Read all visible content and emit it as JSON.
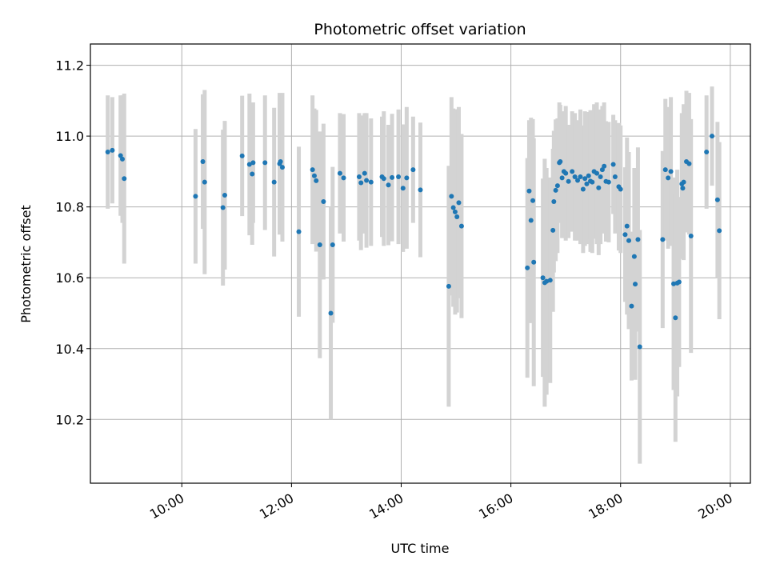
{
  "chart_data": {
    "type": "scatter",
    "title": "Photometric offset variation",
    "xlabel": "UTC time",
    "ylabel": "Photometric offset",
    "xlim": [
      "08:20",
      "20:22"
    ],
    "ylim": [
      10.02,
      11.26
    ],
    "xticks": [
      "10:00",
      "12:00",
      "14:00",
      "16:00",
      "18:00",
      "20:00"
    ],
    "yticks": [
      10.2,
      10.4,
      10.6,
      10.8,
      11.0,
      11.2
    ],
    "grid": true,
    "marker_color": "#1f77b4",
    "errorbar_color": "#d3d3d3",
    "points": [
      {
        "x": "08:39",
        "y": 10.955,
        "err": 0.16
      },
      {
        "x": "08:44",
        "y": 10.96,
        "err": 0.15
      },
      {
        "x": "08:53",
        "y": 10.945,
        "err": 0.17
      },
      {
        "x": "08:55",
        "y": 10.935,
        "err": 0.18
      },
      {
        "x": "08:57",
        "y": 10.88,
        "err": 0.24
      },
      {
        "x": "10:15",
        "y": 10.83,
        "err": 0.19
      },
      {
        "x": "10:23",
        "y": 10.928,
        "err": 0.19
      },
      {
        "x": "10:25",
        "y": 10.87,
        "err": 0.26
      },
      {
        "x": "10:45",
        "y": 10.798,
        "err": 0.22
      },
      {
        "x": "10:47",
        "y": 10.833,
        "err": 0.21
      },
      {
        "x": "11:06",
        "y": 10.944,
        "err": 0.17
      },
      {
        "x": "11:14",
        "y": 10.92,
        "err": 0.2
      },
      {
        "x": "11:17",
        "y": 10.893,
        "err": 0.2
      },
      {
        "x": "11:18",
        "y": 10.925,
        "err": 0.17
      },
      {
        "x": "11:31",
        "y": 10.925,
        "err": 0.19
      },
      {
        "x": "11:41",
        "y": 10.87,
        "err": 0.21
      },
      {
        "x": "11:47",
        "y": 10.922,
        "err": 0.2
      },
      {
        "x": "11:48",
        "y": 10.928,
        "err": 0.19
      },
      {
        "x": "11:50",
        "y": 10.912,
        "err": 0.21
      },
      {
        "x": "12:08",
        "y": 10.73,
        "err": 0.24
      },
      {
        "x": "12:23",
        "y": 10.905,
        "err": 0.21
      },
      {
        "x": "12:25",
        "y": 10.888,
        "err": 0.19
      },
      {
        "x": "12:27",
        "y": 10.874,
        "err": 0.2
      },
      {
        "x": "12:31",
        "y": 10.693,
        "err": 0.32
      },
      {
        "x": "12:35",
        "y": 10.815,
        "err": 0.22
      },
      {
        "x": "12:43",
        "y": 10.5,
        "err": 0.3
      },
      {
        "x": "12:45",
        "y": 10.693,
        "err": 0.22
      },
      {
        "x": "12:53",
        "y": 10.895,
        "err": 0.17
      },
      {
        "x": "12:57",
        "y": 10.882,
        "err": 0.18
      },
      {
        "x": "13:14",
        "y": 10.885,
        "err": 0.18
      },
      {
        "x": "13:16",
        "y": 10.868,
        "err": 0.19
      },
      {
        "x": "13:20",
        "y": 10.895,
        "err": 0.17
      },
      {
        "x": "13:22",
        "y": 10.875,
        "err": 0.19
      },
      {
        "x": "13:27",
        "y": 10.87,
        "err": 0.18
      },
      {
        "x": "13:39",
        "y": 10.885,
        "err": 0.17
      },
      {
        "x": "13:41",
        "y": 10.88,
        "err": 0.19
      },
      {
        "x": "13:46",
        "y": 10.862,
        "err": 0.17
      },
      {
        "x": "13:50",
        "y": 10.883,
        "err": 0.18
      },
      {
        "x": "13:57",
        "y": 10.885,
        "err": 0.19
      },
      {
        "x": "14:02",
        "y": 10.853,
        "err": 0.18
      },
      {
        "x": "14:06",
        "y": 10.882,
        "err": 0.2
      },
      {
        "x": "14:13",
        "y": 10.905,
        "err": 0.15
      },
      {
        "x": "14:21",
        "y": 10.848,
        "err": 0.19
      },
      {
        "x": "14:52",
        "y": 10.576,
        "err": 0.34
      },
      {
        "x": "14:55",
        "y": 10.83,
        "err": 0.28
      },
      {
        "x": "14:57",
        "y": 10.798,
        "err": 0.28
      },
      {
        "x": "14:59",
        "y": 10.786,
        "err": 0.29
      },
      {
        "x": "15:01",
        "y": 10.772,
        "err": 0.27
      },
      {
        "x": "15:03",
        "y": 10.812,
        "err": 0.27
      },
      {
        "x": "15:06",
        "y": 10.746,
        "err": 0.26
      },
      {
        "x": "16:18",
        "y": 10.628,
        "err": 0.31
      },
      {
        "x": "16:20",
        "y": 10.845,
        "err": 0.2
      },
      {
        "x": "16:22",
        "y": 10.762,
        "err": 0.29
      },
      {
        "x": "16:24",
        "y": 10.818,
        "err": 0.23
      },
      {
        "x": "16:25",
        "y": 10.644,
        "err": 0.35
      },
      {
        "x": "16:35",
        "y": 10.6,
        "err": 0.28
      },
      {
        "x": "16:37",
        "y": 10.586,
        "err": 0.35
      },
      {
        "x": "16:39",
        "y": 10.59,
        "err": 0.32
      },
      {
        "x": "16:43",
        "y": 10.593,
        "err": 0.29
      },
      {
        "x": "16:46",
        "y": 10.734,
        "err": 0.23
      },
      {
        "x": "16:47",
        "y": 10.815,
        "err": 0.2
      },
      {
        "x": "16:49",
        "y": 10.847,
        "err": 0.2
      },
      {
        "x": "16:51",
        "y": 10.86,
        "err": 0.19
      },
      {
        "x": "16:53",
        "y": 10.925,
        "err": 0.17
      },
      {
        "x": "16:54",
        "y": 10.928,
        "err": 0.16
      },
      {
        "x": "16:56",
        "y": 10.882,
        "err": 0.17
      },
      {
        "x": "16:58",
        "y": 10.9,
        "err": 0.17
      },
      {
        "x": "17:00",
        "y": 10.895,
        "err": 0.19
      },
      {
        "x": "17:03",
        "y": 10.872,
        "err": 0.16
      },
      {
        "x": "17:07",
        "y": 10.9,
        "err": 0.17
      },
      {
        "x": "17:10",
        "y": 10.885,
        "err": 0.18
      },
      {
        "x": "17:13",
        "y": 10.875,
        "err": 0.17
      },
      {
        "x": "17:16",
        "y": 10.885,
        "err": 0.19
      },
      {
        "x": "17:19",
        "y": 10.85,
        "err": 0.18
      },
      {
        "x": "17:21",
        "y": 10.88,
        "err": 0.19
      },
      {
        "x": "17:23",
        "y": 10.865,
        "err": 0.17
      },
      {
        "x": "17:25",
        "y": 10.888,
        "err": 0.18
      },
      {
        "x": "17:27",
        "y": 10.873,
        "err": 0.2
      },
      {
        "x": "17:29",
        "y": 10.87,
        "err": 0.2
      },
      {
        "x": "17:31",
        "y": 10.9,
        "err": 0.19
      },
      {
        "x": "17:34",
        "y": 10.895,
        "err": 0.2
      },
      {
        "x": "17:36",
        "y": 10.854,
        "err": 0.19
      },
      {
        "x": "17:38",
        "y": 10.885,
        "err": 0.19
      },
      {
        "x": "17:40",
        "y": 10.905,
        "err": 0.18
      },
      {
        "x": "17:42",
        "y": 10.915,
        "err": 0.18
      },
      {
        "x": "17:44",
        "y": 10.872,
        "err": 0.17
      },
      {
        "x": "17:47",
        "y": 10.87,
        "err": 0.17
      },
      {
        "x": "17:52",
        "y": 10.92,
        "err": 0.14
      },
      {
        "x": "17:54",
        "y": 10.885,
        "err": 0.16
      },
      {
        "x": "17:58",
        "y": 10.857,
        "err": 0.18
      },
      {
        "x": "18:00",
        "y": 10.85,
        "err": 0.18
      },
      {
        "x": "18:05",
        "y": 10.722,
        "err": 0.19
      },
      {
        "x": "18:07",
        "y": 10.746,
        "err": 0.25
      },
      {
        "x": "18:09",
        "y": 10.705,
        "err": 0.25
      },
      {
        "x": "18:12",
        "y": 10.52,
        "err": 0.21
      },
      {
        "x": "18:15",
        "y": 10.66,
        "err": 0.25
      },
      {
        "x": "18:16",
        "y": 10.582,
        "err": 0.27
      },
      {
        "x": "18:19",
        "y": 10.708,
        "err": 0.26
      },
      {
        "x": "18:21",
        "y": 10.405,
        "err": 0.33
      },
      {
        "x": "18:46",
        "y": 10.708,
        "err": 0.25
      },
      {
        "x": "18:49",
        "y": 10.905,
        "err": 0.2
      },
      {
        "x": "18:52",
        "y": 10.882,
        "err": 0.2
      },
      {
        "x": "18:55",
        "y": 10.9,
        "err": 0.21
      },
      {
        "x": "18:58",
        "y": 10.583,
        "err": 0.3
      },
      {
        "x": "19:00",
        "y": 10.487,
        "err": 0.35
      },
      {
        "x": "19:02",
        "y": 10.585,
        "err": 0.32
      },
      {
        "x": "19:04",
        "y": 10.588,
        "err": 0.24
      },
      {
        "x": "19:07",
        "y": 10.865,
        "err": 0.2
      },
      {
        "x": "19:08",
        "y": 10.853,
        "err": 0.2
      },
      {
        "x": "19:09",
        "y": 10.87,
        "err": 0.22
      },
      {
        "x": "19:12",
        "y": 10.928,
        "err": 0.2
      },
      {
        "x": "19:15",
        "y": 10.922,
        "err": 0.2
      },
      {
        "x": "19:17",
        "y": 10.718,
        "err": 0.33
      },
      {
        "x": "19:34",
        "y": 10.955,
        "err": 0.16
      },
      {
        "x": "19:40",
        "y": 11.0,
        "err": 0.14
      },
      {
        "x": "19:46",
        "y": 10.82,
        "err": 0.22
      },
      {
        "x": "19:48",
        "y": 10.733,
        "err": 0.25
      }
    ]
  }
}
